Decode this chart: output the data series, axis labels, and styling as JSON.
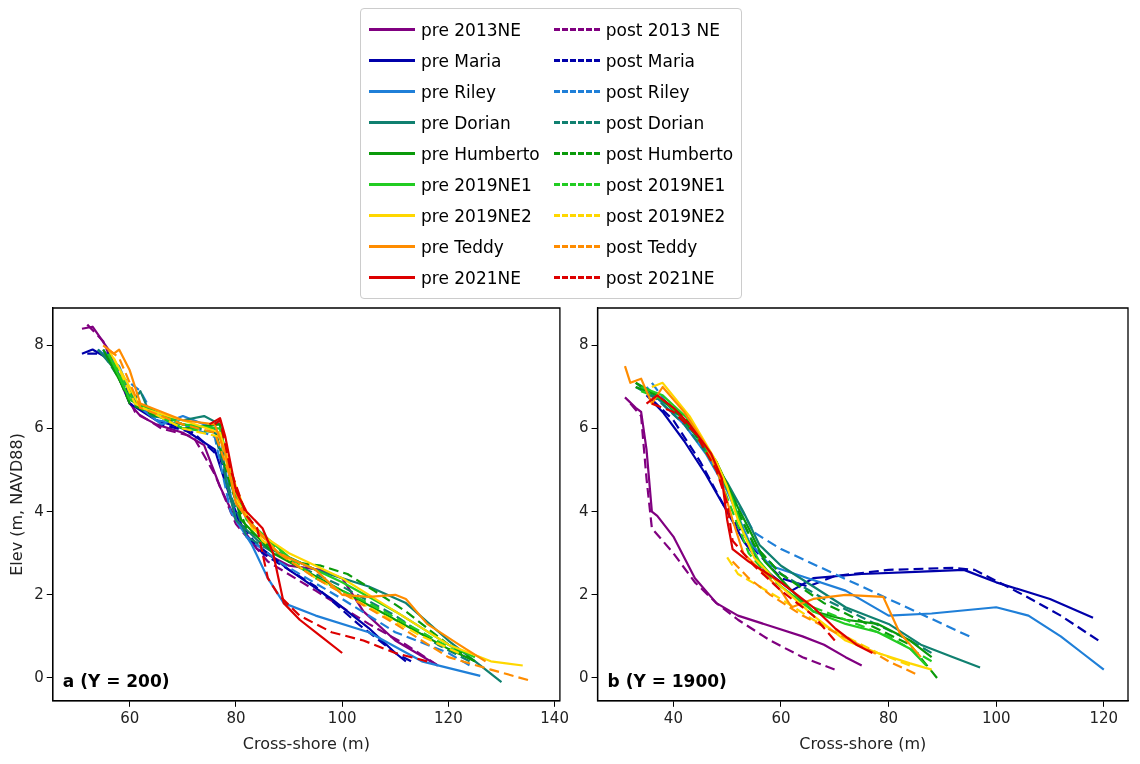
{
  "chart_data": [
    {
      "type": "line",
      "xlabel": "Cross-shore (m)",
      "ylabel": "Elev (m, NAVD88)",
      "annotations": [
        "a (Y = 200)"
      ],
      "xlim": [
        45.5,
        141
      ],
      "xticks": [
        60,
        80,
        100,
        120,
        140
      ],
      "ylim": [
        -0.55,
        8.9
      ],
      "yticks": [
        0,
        2,
        4,
        6,
        8
      ],
      "grid": false,
      "legend": "top",
      "marker": "none",
      "series": [
        {
          "name": "pre 2013NE",
          "color": "#800080",
          "line_style": "solid",
          "x": [
            51,
            53,
            56,
            58,
            60,
            62,
            65,
            70,
            74,
            77,
            80,
            84,
            90,
            96,
            100,
            104,
            110,
            118
          ],
          "values": [
            8.4,
            8.45,
            7.9,
            7.2,
            6.6,
            6.3,
            6.1,
            5.9,
            5.6,
            4.6,
            3.8,
            3.1,
            2.7,
            2.6,
            2.4,
            1.6,
            0.9,
            0.3
          ]
        },
        {
          "name": "post 2013 NE",
          "color": "#800080",
          "line_style": "dashed",
          "x": [
            52,
            55,
            58,
            61,
            66,
            72,
            76,
            80,
            86,
            95,
            105,
            112,
            118
          ],
          "values": [
            8.5,
            8.1,
            7.2,
            6.4,
            6.0,
            5.8,
            4.9,
            3.7,
            2.8,
            2.1,
            1.3,
            0.8,
            0.3
          ]
        },
        {
          "name": "pre Maria",
          "color": "#0000aa",
          "line_style": "solid",
          "x": [
            51,
            53,
            57,
            60,
            65,
            70,
            76,
            79,
            82,
            90,
            98,
            105,
            110,
            112
          ],
          "values": [
            7.8,
            7.9,
            7.6,
            6.6,
            6.2,
            6.0,
            5.5,
            4.3,
            3.4,
            2.6,
            1.9,
            1.2,
            0.6,
            0.4
          ]
        },
        {
          "name": "post Maria",
          "color": "#0000aa",
          "line_style": "dashed",
          "x": [
            52,
            56,
            60,
            66,
            72,
            77,
            80,
            85,
            95,
            103,
            110,
            113
          ],
          "values": [
            7.8,
            7.8,
            6.8,
            6.1,
            5.9,
            5.3,
            3.9,
            3.0,
            2.2,
            1.3,
            0.6,
            0.4
          ]
        },
        {
          "name": "pre Riley",
          "color": "#1f7fd8",
          "line_style": "solid",
          "x": [
            54,
            58,
            61,
            66,
            70,
            76,
            78,
            80,
            83,
            86,
            89,
            95,
            105,
            115,
            126
          ],
          "values": [
            7.9,
            7.5,
            6.6,
            6.1,
            6.3,
            6.0,
            5.0,
            3.8,
            3.2,
            2.4,
            1.8,
            1.5,
            1.1,
            0.4,
            0.05
          ]
        },
        {
          "name": "post Riley",
          "color": "#1f7fd8",
          "line_style": "dashed",
          "x": [
            55,
            59,
            62,
            65,
            70,
            76,
            79,
            82,
            88,
            100,
            110,
            120,
            124
          ],
          "values": [
            7.9,
            7.2,
            6.9,
            6.2,
            6.1,
            5.8,
            4.0,
            3.4,
            2.8,
            1.9,
            1.1,
            0.6,
            0.3
          ]
        },
        {
          "name": "pre Dorian",
          "color": "#108070",
          "line_style": "solid",
          "x": [
            54,
            58,
            61,
            62,
            64,
            70,
            74,
            77,
            78,
            80,
            85,
            95,
            105,
            112,
            120,
            126,
            130
          ],
          "values": [
            7.9,
            7.3,
            6.7,
            6.9,
            6.3,
            6.2,
            6.3,
            6.1,
            4.8,
            3.8,
            3.2,
            2.6,
            2.2,
            1.8,
            0.9,
            0.3,
            -0.1
          ]
        },
        {
          "name": "post Dorian",
          "color": "#108070",
          "line_style": "dashed",
          "x": [
            55,
            60,
            63,
            70,
            76,
            79,
            82,
            90,
            100,
            110,
            118,
            124
          ],
          "values": [
            7.8,
            6.8,
            6.4,
            6.1,
            5.9,
            4.4,
            3.4,
            2.8,
            2.2,
            1.5,
            0.8,
            0.4
          ]
        },
        {
          "name": "pre Humberto",
          "color": "#0a9a0a",
          "line_style": "solid",
          "x": [
            55,
            60,
            64,
            70,
            77,
            79,
            81,
            87,
            100,
            110,
            120,
            125
          ],
          "values": [
            7.9,
            6.7,
            6.4,
            6.0,
            6.1,
            4.7,
            3.8,
            3.0,
            2.1,
            1.4,
            0.7,
            0.4
          ]
        },
        {
          "name": "post Humberto",
          "color": "#0a9a0a",
          "line_style": "dashed",
          "x": [
            56,
            60,
            65,
            70,
            76,
            79,
            82,
            90,
            96,
            101,
            106,
            112,
            120,
            125
          ],
          "values": [
            7.8,
            6.6,
            6.3,
            6.1,
            6.0,
            4.6,
            3.6,
            2.8,
            2.7,
            2.5,
            2.1,
            1.6,
            0.8,
            0.4
          ]
        },
        {
          "name": "pre 2019NE1",
          "color": "#22cc22",
          "line_style": "solid",
          "x": [
            56,
            60,
            70,
            77,
            79,
            82,
            90,
            100,
            110,
            120,
            125
          ],
          "values": [
            7.8,
            6.7,
            6.1,
            6.0,
            4.9,
            3.8,
            2.9,
            2.3,
            1.6,
            0.8,
            0.5
          ]
        },
        {
          "name": "post 2019NE1",
          "color": "#22cc22",
          "line_style": "dashed",
          "x": [
            57,
            61,
            70,
            77,
            80,
            84,
            95,
            105,
            115,
            122
          ],
          "values": [
            7.6,
            6.6,
            6.0,
            5.9,
            4.4,
            3.5,
            2.4,
            1.8,
            1.1,
            0.6
          ]
        },
        {
          "name": "pre 2019NE2",
          "color": "#ffd700",
          "line_style": "solid",
          "x": [
            56,
            60,
            62,
            70,
            77,
            80,
            83,
            90,
            100,
            110,
            120,
            128,
            134
          ],
          "values": [
            7.9,
            7.0,
            6.5,
            6.2,
            5.9,
            4.6,
            3.6,
            3.0,
            2.4,
            1.6,
            0.8,
            0.4,
            0.3
          ]
        },
        {
          "name": "post 2019NE2",
          "color": "#ffd700",
          "line_style": "dashed",
          "x": [
            57,
            61,
            70,
            77,
            80,
            85,
            95,
            105,
            115,
            122
          ],
          "values": [
            7.7,
            6.6,
            6.0,
            5.8,
            4.3,
            3.3,
            2.4,
            1.7,
            1.0,
            0.6
          ]
        },
        {
          "name": "pre Teddy",
          "color": "#ff8c00",
          "line_style": "solid",
          "x": [
            55,
            57,
            58,
            60,
            62,
            70,
            76,
            78,
            80,
            83,
            88,
            95,
            100,
            105,
            110,
            112,
            116,
            122,
            127
          ],
          "values": [
            8.0,
            7.8,
            7.9,
            7.4,
            6.6,
            6.2,
            6.1,
            5.4,
            4.2,
            3.7,
            3.0,
            2.6,
            2.0,
            1.95,
            2.0,
            1.9,
            1.3,
            0.8,
            0.4
          ]
        },
        {
          "name": "post Teddy",
          "color": "#ff8c00",
          "line_style": "dashed",
          "x": [
            56,
            58,
            60,
            62,
            70,
            76,
            79,
            82,
            88,
            95,
            102,
            110,
            120,
            128,
            135
          ],
          "values": [
            7.9,
            7.7,
            7.1,
            6.5,
            6.1,
            5.9,
            4.8,
            3.8,
            3.0,
            2.4,
            1.9,
            1.3,
            0.5,
            0.2,
            -0.05
          ]
        },
        {
          "name": "pre 2021NE",
          "color": "#dd0000",
          "line_style": "solid",
          "x": [
            75,
            77,
            78,
            80,
            82,
            85,
            87,
            88,
            89,
            92,
            96,
            100
          ],
          "values": [
            6.1,
            6.25,
            5.8,
            4.5,
            4.0,
            3.6,
            3.0,
            2.4,
            1.8,
            1.4,
            1.0,
            0.6
          ]
        },
        {
          "name": "post 2021NE",
          "color": "#dd0000",
          "line_style": "dashed",
          "x": [
            76,
            77,
            79,
            82,
            84,
            85,
            86,
            88,
            92,
            98,
            104,
            110,
            116
          ],
          "values": [
            6.1,
            6.2,
            5.0,
            3.9,
            3.6,
            3.0,
            2.4,
            2.0,
            1.5,
            1.1,
            0.9,
            0.6,
            0.4
          ]
        }
      ]
    },
    {
      "type": "line",
      "xlabel": "Cross-shore (m)",
      "annotations": [
        "b (Y = 1900)"
      ],
      "xlim": [
        25.9,
        124.5
      ],
      "xticks": [
        40,
        60,
        80,
        100,
        120
      ],
      "ylim": [
        -0.55,
        8.9
      ],
      "yticks": [
        0,
        2,
        4,
        6,
        8
      ],
      "grid": false,
      "legend": "top",
      "marker": "none",
      "series": [
        {
          "name": "pre 2013NE",
          "color": "#800080",
          "line_style": "solid",
          "x": [
            31,
            33,
            34,
            35,
            36,
            37,
            40,
            44,
            48,
            52,
            58,
            64,
            68,
            72,
            75
          ],
          "values": [
            6.75,
            6.5,
            6.4,
            5.5,
            4.0,
            3.9,
            3.4,
            2.4,
            1.8,
            1.5,
            1.25,
            1.0,
            0.8,
            0.5,
            0.3
          ]
        },
        {
          "name": "post 2013 NE",
          "color": "#800080",
          "line_style": "dashed",
          "x": [
            32,
            34,
            35,
            36,
            40,
            44,
            48,
            52,
            58,
            64,
            70
          ],
          "values": [
            6.6,
            6.3,
            4.8,
            3.6,
            3.0,
            2.3,
            1.8,
            1.4,
            0.9,
            0.5,
            0.2
          ]
        },
        {
          "name": "pre Maria",
          "color": "#0000aa",
          "line_style": "solid",
          "x": [
            35,
            38,
            42,
            46,
            50,
            53,
            57,
            62,
            66,
            75,
            85,
            94,
            100,
            110,
            118
          ],
          "values": [
            6.8,
            6.4,
            5.7,
            4.9,
            4.0,
            3.3,
            2.6,
            2.1,
            2.4,
            2.5,
            2.55,
            2.6,
            2.3,
            1.9,
            1.45
          ]
        },
        {
          "name": "post Maria",
          "color": "#0000aa",
          "line_style": "dashed",
          "x": [
            36,
            40,
            45,
            50,
            55,
            60,
            65,
            70,
            80,
            92,
            96,
            105,
            112,
            119
          ],
          "values": [
            6.7,
            6.2,
            5.2,
            4.0,
            3.1,
            2.4,
            2.2,
            2.45,
            2.6,
            2.65,
            2.6,
            2.0,
            1.5,
            0.9
          ]
        },
        {
          "name": "pre Riley",
          "color": "#1f7fd8",
          "line_style": "solid",
          "x": [
            35,
            38,
            42,
            46,
            50,
            54,
            58,
            65,
            72,
            76,
            80,
            88,
            100,
            106,
            112,
            116,
            120
          ],
          "values": [
            7.0,
            6.6,
            6.1,
            5.4,
            4.5,
            3.3,
            2.7,
            2.4,
            2.1,
            1.8,
            1.5,
            1.55,
            1.7,
            1.5,
            1.0,
            0.6,
            0.2
          ]
        },
        {
          "name": "post Riley",
          "color": "#1f7fd8",
          "line_style": "dashed",
          "x": [
            36,
            40,
            44,
            48,
            52,
            55,
            60,
            70,
            80,
            90,
            95
          ],
          "values": [
            7.1,
            6.4,
            5.9,
            5.0,
            4.2,
            3.5,
            3.1,
            2.5,
            1.9,
            1.3,
            1.0
          ]
        },
        {
          "name": "pre Dorian",
          "color": "#108070",
          "line_style": "solid",
          "x": [
            33,
            36,
            40,
            45,
            50,
            53,
            56,
            60,
            66,
            72,
            80,
            86,
            92,
            97
          ],
          "values": [
            7.1,
            6.8,
            6.5,
            5.7,
            4.7,
            4.0,
            3.2,
            2.7,
            2.2,
            1.7,
            1.3,
            0.8,
            0.5,
            0.25
          ]
        },
        {
          "name": "post Dorian",
          "color": "#108070",
          "line_style": "dashed",
          "x": [
            33,
            37,
            42,
            48,
            52,
            55,
            60,
            68,
            76,
            84,
            88
          ],
          "values": [
            7.0,
            6.7,
            6.1,
            5.1,
            4.0,
            3.2,
            2.5,
            1.9,
            1.4,
            0.9,
            0.6
          ]
        },
        {
          "name": "pre Humberto",
          "color": "#0a9a0a",
          "line_style": "solid",
          "x": [
            33,
            37,
            42,
            48,
            52,
            54,
            57,
            62,
            66,
            72,
            78,
            84,
            88
          ],
          "values": [
            7.1,
            6.8,
            6.2,
            5.2,
            4.1,
            3.6,
            2.8,
            2.1,
            1.6,
            1.4,
            1.3,
            0.9,
            0.5
          ]
        },
        {
          "name": "post Humberto",
          "color": "#0a9a0a",
          "line_style": "dashed",
          "x": [
            33,
            37,
            42,
            48,
            52,
            55,
            60,
            68,
            76,
            84,
            89
          ],
          "values": [
            7.0,
            6.8,
            6.3,
            5.2,
            4.0,
            3.2,
            2.5,
            1.8,
            1.3,
            0.8,
            0.0
          ]
        },
        {
          "name": "pre 2019NE1",
          "color": "#22cc22",
          "line_style": "solid",
          "x": [
            34,
            38,
            43,
            48,
            51,
            53,
            56,
            60,
            66,
            72,
            78,
            84,
            87
          ],
          "values": [
            7.0,
            6.8,
            6.2,
            5.1,
            4.3,
            3.5,
            2.8,
            2.2,
            1.6,
            1.3,
            1.1,
            0.7,
            0.3
          ]
        },
        {
          "name": "post 2019NE1",
          "color": "#22cc22",
          "line_style": "dashed",
          "x": [
            34,
            38,
            43,
            48,
            51,
            54,
            58,
            64,
            72,
            80,
            88
          ],
          "values": [
            6.9,
            6.7,
            6.1,
            5.0,
            4.0,
            3.0,
            2.4,
            1.8,
            1.4,
            1.0,
            0.4
          ]
        },
        {
          "name": "pre 2019NE2",
          "color": "#ffd700",
          "line_style": "solid",
          "x": [
            36,
            38,
            43,
            48,
            50,
            52,
            55,
            60,
            66,
            72,
            78,
            84,
            88
          ],
          "values": [
            7.0,
            7.1,
            6.3,
            5.2,
            4.6,
            3.8,
            2.9,
            2.2,
            1.5,
            0.9,
            0.6,
            0.35,
            0.2
          ]
        },
        {
          "name": "post 2019NE2",
          "color": "#ffd700",
          "line_style": "dashed",
          "x": [
            50,
            52,
            56,
            60,
            66,
            72,
            78,
            84
          ],
          "values": [
            2.9,
            2.5,
            2.2,
            1.9,
            1.4,
            1.0,
            0.6,
            0.3
          ]
        },
        {
          "name": "pre Teddy",
          "color": "#ff8c00",
          "line_style": "solid",
          "x": [
            31,
            32,
            34,
            36,
            38,
            42,
            46,
            49,
            51,
            53,
            57,
            60,
            62,
            66,
            72,
            79,
            82,
            86
          ],
          "values": [
            7.5,
            7.1,
            7.2,
            6.6,
            7.0,
            6.4,
            5.6,
            4.7,
            3.8,
            3.0,
            2.5,
            2.1,
            1.7,
            1.9,
            2.0,
            1.95,
            1.1,
            0.5
          ]
        },
        {
          "name": "post Teddy",
          "color": "#ff8c00",
          "line_style": "dashed",
          "x": [
            51,
            54,
            58,
            64,
            70,
            76,
            80,
            85
          ],
          "values": [
            2.8,
            2.4,
            2.0,
            1.5,
            1.1,
            0.7,
            0.4,
            0.1
          ]
        },
        {
          "name": "pre 2021NE",
          "color": "#dd0000",
          "line_style": "solid",
          "x": [
            35,
            37,
            40,
            43,
            47,
            49,
            50,
            51,
            54,
            60,
            66,
            70,
            74,
            77
          ],
          "values": [
            6.6,
            6.8,
            6.5,
            6.1,
            5.4,
            4.8,
            3.8,
            3.1,
            2.8,
            2.3,
            1.7,
            1.2,
            0.8,
            0.6
          ]
        },
        {
          "name": "post 2021NE",
          "color": "#dd0000",
          "line_style": "dashed",
          "x": [
            36,
            40,
            44,
            48,
            50,
            51,
            55,
            60,
            66,
            70
          ],
          "values": [
            6.6,
            6.4,
            5.9,
            5.0,
            4.2,
            3.3,
            2.7,
            2.1,
            1.5,
            0.9
          ]
        }
      ]
    }
  ]
}
